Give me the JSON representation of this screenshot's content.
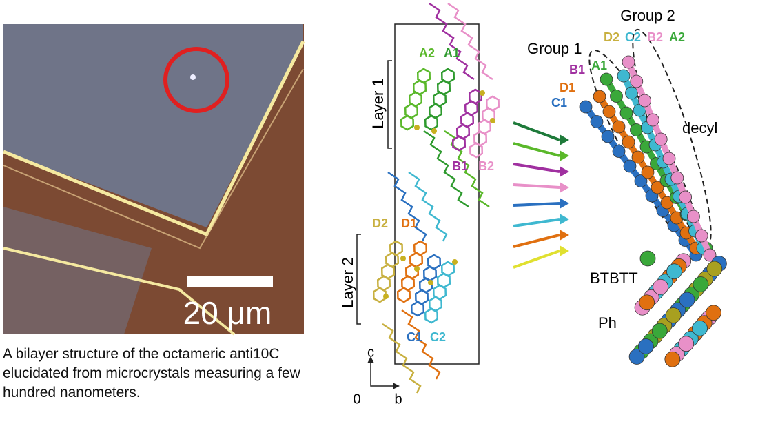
{
  "micrograph": {
    "scale_bar": "20 μm"
  },
  "caption": "A bilayer structure of the octameric anti10C elucidated from microcrystals measuring a few hundred nanometers.",
  "packing": {
    "layers": [
      "Layer 1",
      "Layer 2"
    ],
    "labels": {
      "A2": "A2",
      "A1": "A1",
      "B1": "B1",
      "B2": "B2",
      "D2": "D2",
      "D1": "D1",
      "C1": "C1",
      "C2": "C2"
    },
    "axes": {
      "c": "c",
      "origin": "0",
      "b": "b"
    }
  },
  "overlay": {
    "group2": "Group 2",
    "group2_labels": [
      "D2",
      "C2",
      "B2",
      "A2"
    ],
    "group1": "Group 1",
    "group1_labels": [
      "B1",
      "A1",
      "D1",
      "C1"
    ],
    "decyl": "decyl",
    "core": "BTBTT",
    "phenyl": "Ph"
  }
}
